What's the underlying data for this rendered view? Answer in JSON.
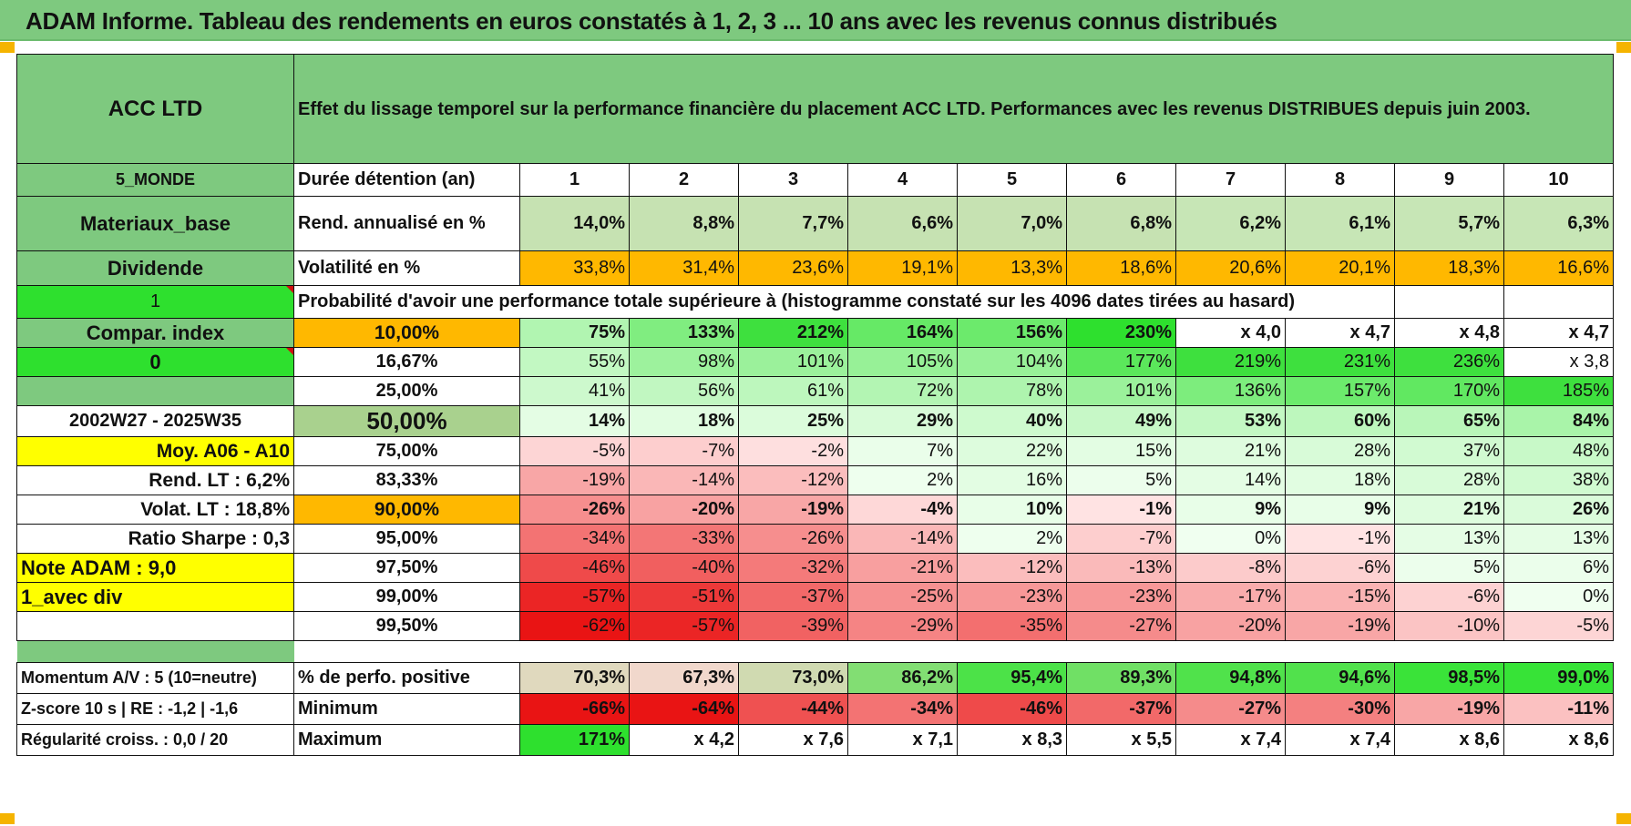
{
  "title": "ADAM Informe. Tableau des rendements en euros constatés à 1, 2, 3 ... 10 ans avec les revenus connus distribués",
  "fund_name": "ACC LTD",
  "header_text": "Effet du lissage temporel sur la performance financière du placement ACC LTD. Performances avec les revenus DISTRIBUES depuis juin 2003.",
  "colors": {
    "header_green": "#7ec97f",
    "bright_green": "#2ee02e",
    "orange": "#ffb800",
    "yellow": "#ffff00",
    "red_text": "#d41111"
  },
  "side": {
    "region": "5_MONDE",
    "sector": "Materiaux_base",
    "income": "Dividende",
    "flag1": "1",
    "compar_index": "Compar. index",
    "flag0": "0",
    "period": "2002W27 - 2025W35",
    "moy": "Moy. A06 - A10",
    "rend_lt": "Rend. LT :   6,2%",
    "volat_lt": "Volat. LT :   18,8%",
    "sharpe": "Ratio Sharpe :    0,3",
    "note": "Note ADAM : 9,0",
    "div_mode": "1_avec div",
    "momentum": "Momentum A/V : 5 (10=neutre)",
    "zscore": "Z-score 10 s | RE : -1,2 | -1,6",
    "regularite": "Régularité croiss. : 0,0 / 20"
  },
  "labels": {
    "duree": "Durée détention (an)",
    "rend": "Rend. annualisé en %",
    "vol": "Volatilité en %",
    "prob": "Probabilité d'avoir une performance totale supérieure à (histogramme constaté sur les 4096 dates tirées au hasard)",
    "pos": "% de perfo. positive",
    "min": "Minimum",
    "max": "Maximum"
  },
  "years": [
    "1",
    "2",
    "3",
    "4",
    "5",
    "6",
    "7",
    "8",
    "9",
    "10"
  ],
  "rend": [
    "14,0%",
    "8,8%",
    "7,7%",
    "6,6%",
    "7,0%",
    "6,8%",
    "6,2%",
    "6,1%",
    "5,7%",
    "6,3%"
  ],
  "vol": [
    "33,8%",
    "31,4%",
    "23,6%",
    "19,1%",
    "13,3%",
    "18,6%",
    "20,6%",
    "20,1%",
    "18,3%",
    "16,6%"
  ],
  "prob_rows": [
    {
      "p": "10,00%",
      "v": [
        "75%",
        "133%",
        "212%",
        "164%",
        "156%",
        "230%",
        "x 4,0",
        "x 4,7",
        "x 4,8",
        "x 4,7"
      ]
    },
    {
      "p": "16,67%",
      "v": [
        "55%",
        "98%",
        "101%",
        "105%",
        "104%",
        "177%",
        "219%",
        "231%",
        "236%",
        "x 3,8"
      ]
    },
    {
      "p": "25,00%",
      "v": [
        "41%",
        "56%",
        "61%",
        "72%",
        "78%",
        "101%",
        "136%",
        "157%",
        "170%",
        "185%"
      ]
    },
    {
      "p": "50,00%",
      "v": [
        "14%",
        "18%",
        "25%",
        "29%",
        "40%",
        "49%",
        "53%",
        "60%",
        "65%",
        "84%"
      ]
    },
    {
      "p": "75,00%",
      "v": [
        "-5%",
        "-7%",
        "-2%",
        "7%",
        "22%",
        "15%",
        "21%",
        "28%",
        "37%",
        "48%"
      ]
    },
    {
      "p": "83,33%",
      "v": [
        "-19%",
        "-14%",
        "-12%",
        "2%",
        "16%",
        "5%",
        "14%",
        "18%",
        "28%",
        "38%"
      ]
    },
    {
      "p": "90,00%",
      "v": [
        "-26%",
        "-20%",
        "-19%",
        "-4%",
        "10%",
        "-1%",
        "9%",
        "9%",
        "21%",
        "26%"
      ]
    },
    {
      "p": "95,00%",
      "v": [
        "-34%",
        "-33%",
        "-26%",
        "-14%",
        "2%",
        "-7%",
        "0%",
        "-1%",
        "13%",
        "13%"
      ]
    },
    {
      "p": "97,50%",
      "v": [
        "-46%",
        "-40%",
        "-32%",
        "-21%",
        "-12%",
        "-13%",
        "-8%",
        "-6%",
        "5%",
        "6%"
      ]
    },
    {
      "p": "99,00%",
      "v": [
        "-57%",
        "-51%",
        "-37%",
        "-25%",
        "-23%",
        "-23%",
        "-17%",
        "-15%",
        "-6%",
        "0%"
      ]
    },
    {
      "p": "99,50%",
      "v": [
        "-62%",
        "-57%",
        "-39%",
        "-29%",
        "-35%",
        "-27%",
        "-20%",
        "-19%",
        "-10%",
        "-5%"
      ]
    }
  ],
  "pos": [
    "70,3%",
    "67,3%",
    "73,0%",
    "86,2%",
    "95,4%",
    "89,3%",
    "94,8%",
    "94,6%",
    "98,5%",
    "99,0%"
  ],
  "min": [
    "-66%",
    "-64%",
    "-44%",
    "-34%",
    "-46%",
    "-37%",
    "-27%",
    "-30%",
    "-19%",
    "-11%"
  ],
  "max": [
    "171%",
    "x 4,2",
    "x 7,6",
    "x 7,1",
    "x 8,3",
    "x 5,5",
    "x 7,4",
    "x 7,4",
    "x 8,6",
    "x 8,6"
  ]
}
